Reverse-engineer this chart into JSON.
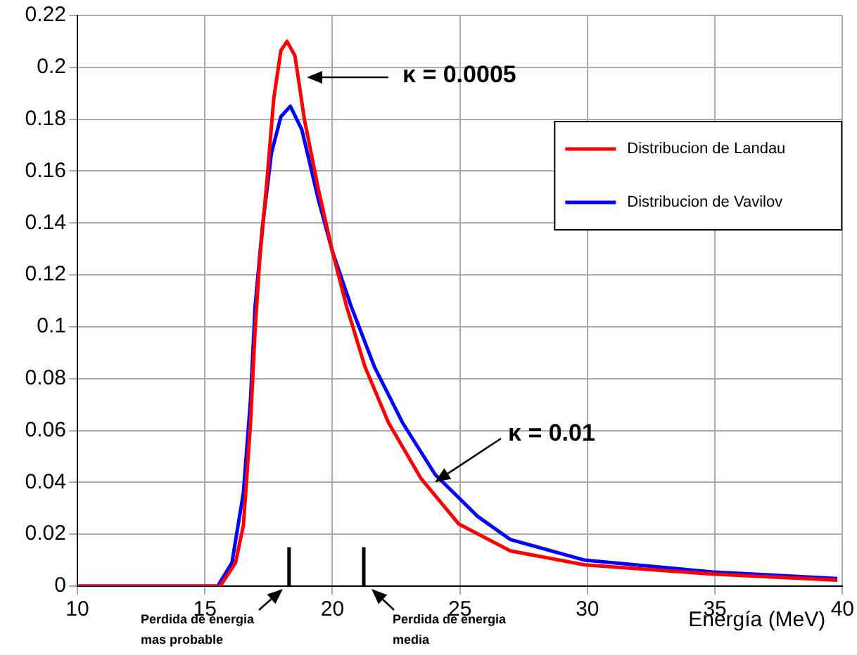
{
  "chart_data": {
    "type": "line",
    "xlabel": "Energía (MeV)",
    "xlim": [
      10,
      40
    ],
    "xticks": [
      10,
      15,
      20,
      25,
      30,
      35,
      40
    ],
    "ylim": [
      0,
      0.22
    ],
    "yticks": [
      0,
      0.02,
      0.04,
      0.06,
      0.08,
      0.1,
      0.12,
      0.14,
      0.16,
      0.18,
      0.2,
      0.22
    ],
    "grid": true,
    "legend": "top right",
    "marker": "none",
    "line_style": "solid",
    "series": [
      {
        "name": "Distribucion de Landau",
        "color": "#ff0000",
        "x": [
          10,
          15.6,
          16.2,
          16.51,
          16.79,
          16.97,
          17.15,
          17.43,
          17.7,
          17.98,
          18.22,
          18.53,
          18.9,
          19.45,
          20.0,
          20.55,
          21.28,
          22.2,
          23.48,
          24.95,
          26.97,
          29.9,
          34.86,
          39.8
        ],
        "values": [
          0,
          0,
          0.009,
          0.0235,
          0.063,
          0.099,
          0.126,
          0.156,
          0.188,
          0.2065,
          0.21,
          0.2045,
          0.18,
          0.153,
          0.129,
          0.108,
          0.0845,
          0.063,
          0.0414,
          0.024,
          0.0136,
          0.0082,
          0.0047,
          0.0023
        ]
      },
      {
        "name": "Distribucion de Vavilov",
        "color": "#0000ff",
        "x": [
          10,
          15.5,
          16.06,
          16.51,
          16.79,
          16.97,
          17.25,
          17.61,
          17.98,
          18.35,
          18.8,
          19.45,
          20.0,
          20.73,
          21.65,
          22.75,
          24.03,
          25.68,
          26.97,
          29.9,
          34.86,
          39.8
        ],
        "values": [
          0,
          0,
          0.009,
          0.036,
          0.072,
          0.108,
          0.138,
          0.167,
          0.181,
          0.185,
          0.176,
          0.149,
          0.129,
          0.108,
          0.0845,
          0.063,
          0.043,
          0.027,
          0.018,
          0.01,
          0.0055,
          0.0029
        ]
      },
      {
        "type": "line",
        "color": "#000000",
        "x": [
          18.3,
          18.3
        ],
        "values": [
          0,
          0.015
        ]
      },
      {
        "type": "line",
        "color": "#000000",
        "x": [
          21.23,
          21.23
        ],
        "values": [
          0,
          0.015
        ]
      }
    ],
    "annotations": [
      "κ = 0.0005",
      "κ = 0.01",
      "Perdida de energia\nmas probable",
      "Perdida de energia\nmedia"
    ]
  }
}
